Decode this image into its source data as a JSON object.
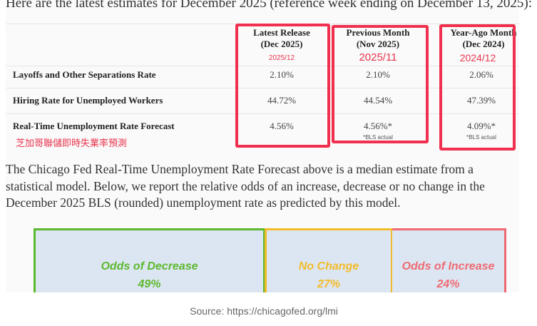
{
  "intro": "Here are the latest estimates for December 2025 (reference week ending on December 13, 2025):",
  "table": {
    "headers": [
      {
        "line1": "Latest Release",
        "line2": "(Dec 2025)",
        "annotation": "2025/12"
      },
      {
        "line1": "Previous Month",
        "line2": "(Nov 2025)",
        "annotation": "2025/11"
      },
      {
        "line1": "Year-Ago Month",
        "line2": "(Dec 2024)",
        "annotation": "2024/12"
      }
    ],
    "rows": [
      {
        "label": "Layoffs and Other Separations Rate",
        "values": [
          "2.10%",
          "2.10%",
          "2.06%"
        ]
      },
      {
        "label": "Hiring Rate for Unemployed Workers",
        "values": [
          "44.72%",
          "44.54%",
          "47.39%"
        ]
      },
      {
        "label": "Real-Time Unemployment Rate Forecast",
        "values": [
          "4.56%",
          "4.56%*",
          "4.09%*"
        ],
        "notes": [
          "",
          "*BLS actual",
          "*BLS actual"
        ]
      }
    ],
    "row_annotation": "芝加哥聯儲即時失業率預測",
    "highlight_color": "#f0304e"
  },
  "paragraph": "The Chicago Fed Real-Time Unemployment Rate Forecast above is a median estimate from a statistical model. Below, we report the relative odds of an increase, decrease or no change in the December 2025 BLS (rounded) unemployment rate as predicted by this model.",
  "odds": [
    {
      "label": "Odds of Decrease",
      "value": "49%",
      "color": "#5cb82e"
    },
    {
      "label": "No Change",
      "value": "27%",
      "color": "#f2bb2a"
    },
    {
      "label": "Odds of Increase",
      "value": "24%",
      "color": "#ee6a72"
    }
  ],
  "source": "Source: https://chicagofed.org/lmi"
}
